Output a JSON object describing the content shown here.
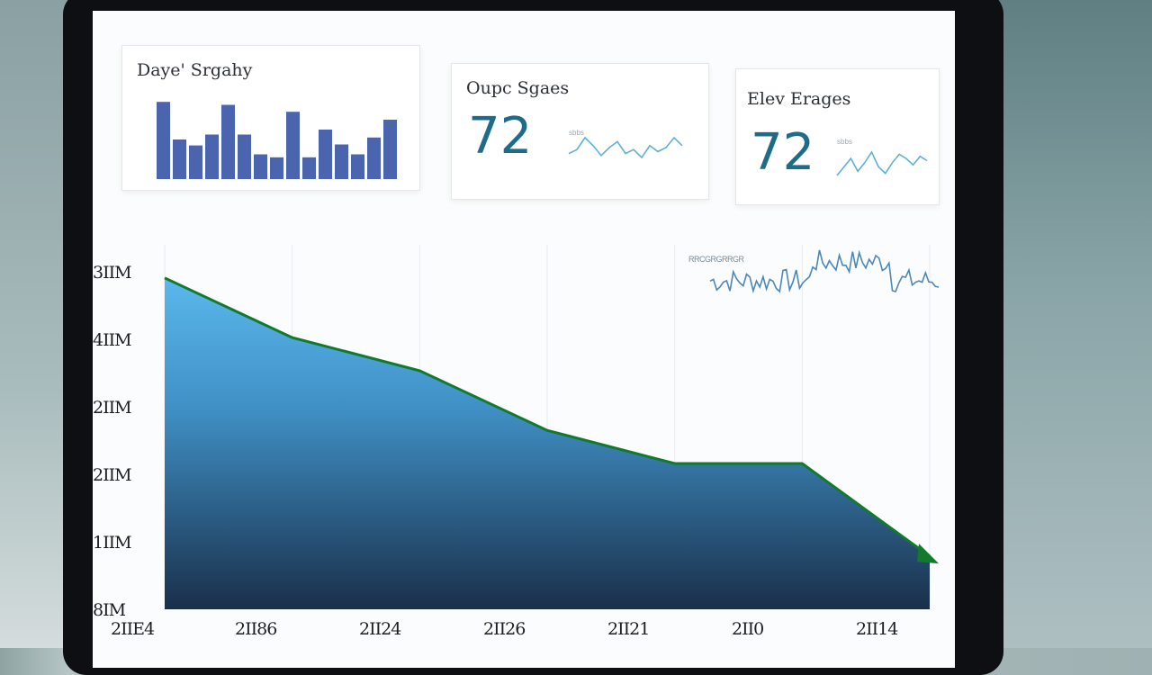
{
  "cards": [
    {
      "title": "Daye' Srgahy",
      "type": "bars",
      "bar_values": [
        78,
        40,
        34,
        45,
        75,
        45,
        25,
        22,
        68,
        22,
        50,
        35,
        25,
        42,
        60
      ]
    },
    {
      "title": "Oupc Sgaes",
      "value": "72",
      "caption": "sbbs",
      "spark": [
        6,
        8,
        14,
        10,
        5,
        9,
        12,
        6,
        8,
        4,
        10,
        7,
        9,
        14,
        10
      ]
    },
    {
      "title": "Elev Erages",
      "value": "72",
      "caption": "sbbs",
      "spark": [
        4,
        8,
        12,
        6,
        10,
        15,
        8,
        5,
        10,
        14,
        12,
        9,
        13,
        11
      ]
    }
  ],
  "main_chart": {
    "y_ticks": [
      "3IIM",
      "4IIM",
      "2IIM",
      "2IIM",
      "1IIM",
      "8IM"
    ],
    "x_ticks": [
      "2IIE4",
      "2II86",
      "2II24",
      "2II26",
      "2II21",
      "2II0",
      "2II14"
    ],
    "inset_label": "RRCGRGRRGR",
    "accent_fill_top": "#5bb8ec",
    "accent_fill_bottom": "#1a2f4a",
    "line_color": "#137a2c"
  },
  "chart_data": {
    "type": "area",
    "categories": [
      "2IIE4",
      "2II86",
      "2II24",
      "2II26",
      "2II21",
      "2II0",
      "2II14"
    ],
    "values": [
      50,
      41,
      36,
      27,
      22,
      22,
      8
    ],
    "ylim": [
      0,
      55
    ],
    "grid": true,
    "trend": "down"
  }
}
